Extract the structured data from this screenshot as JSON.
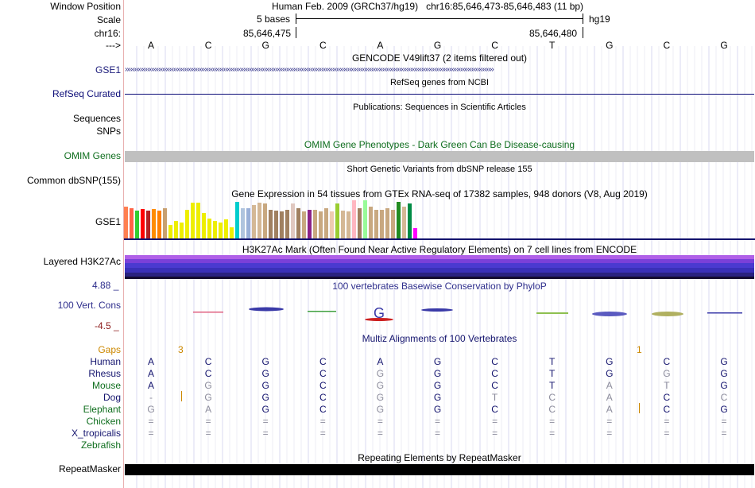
{
  "header": {
    "window_position_label": "Window Position",
    "assembly": "Human Feb. 2009 (GRCh37/hg19)",
    "position": "chr16:85,646,473-85,646,483 (11 bp)",
    "scale_label": "Scale",
    "scale_bases": "5 bases",
    "scale_db": "hg19",
    "chrom_label": "chr16:",
    "coord_left": "85,646,475",
    "coord_right": "85,646,480",
    "strand_label": "--->",
    "sequence": [
      "A",
      "C",
      "G",
      "C",
      "A",
      "G",
      "C",
      "T",
      "G",
      "C",
      "G"
    ]
  },
  "tracks": {
    "gencode": {
      "title": "GENCODE V49lift37 (2 items filtered out)",
      "label": "GSE1",
      "color": "#1a1a7a"
    },
    "refseq": {
      "title": "RefSeq genes from NCBI",
      "label": "RefSeq Curated",
      "color": "#0c0c78"
    },
    "publications": {
      "title": "Publications: Sequences in Scientific Articles",
      "label": "Sequences"
    },
    "snps_label": "SNPs",
    "omim": {
      "title": "OMIM Gene Phenotypes - Dark Green Can Be Disease-causing",
      "label": "OMIM Genes",
      "color": "#0f6e1e"
    },
    "dbsnp": {
      "title": "Short Genetic Variants from dbSNP release 155",
      "label": "Common dbSNP(155)"
    },
    "gtex": {
      "title": "Gene Expression in 54 tissues from GTEx RNA-seq of 17382 samples, 948 donors (V8, Aug 2019)",
      "label": "GSE1"
    },
    "h3k27ac": {
      "title": "H3K27Ac Mark (Often Found Near Active Regulatory Elements) on 7 cell lines from ENCODE",
      "label": "Layered H3K27Ac"
    },
    "phylop": {
      "title": "100 vertebrates Basewise Conservation by PhyloP",
      "label": "100 Vert. Cons",
      "max": "4.88 _",
      "min": "-4.5 _",
      "color": "#2e2e8c"
    },
    "multiz": {
      "title": "Multiz Alignments of 100 Vertebrates",
      "gaps_label": "Gaps",
      "gap_marks": [
        "3",
        "1"
      ],
      "species": [
        {
          "name": "Human",
          "bases": [
            "A",
            "C",
            "G",
            "C",
            "A",
            "G",
            "C",
            "T",
            "G",
            "C",
            "G"
          ]
        },
        {
          "name": "Rhesus",
          "bases": [
            "A",
            "C",
            "G",
            "C",
            "G",
            "G",
            "C",
            "T",
            "G",
            "G",
            "G"
          ]
        },
        {
          "name": "Mouse",
          "bases": [
            "A",
            "G",
            "G",
            "C",
            "G",
            "G",
            "C",
            "T",
            "A",
            "T",
            "G"
          ]
        },
        {
          "name": "Dog",
          "bases": [
            "-",
            "G",
            "G",
            "C",
            "G",
            "G",
            "T",
            "C",
            "A",
            "C",
            "C"
          ]
        },
        {
          "name": "Elephant",
          "bases": [
            "G",
            "A",
            "G",
            "C",
            "G",
            "G",
            "C",
            "C",
            "A",
            "C",
            "G"
          ]
        },
        {
          "name": "Chicken",
          "bases": [
            "=",
            "=",
            "=",
            "=",
            "=",
            "=",
            "=",
            "=",
            "=",
            "=",
            "="
          ]
        },
        {
          "name": "X_tropicalis",
          "bases": [
            "=",
            "=",
            "=",
            "=",
            "=",
            "=",
            "=",
            "=",
            "=",
            "=",
            "="
          ]
        },
        {
          "name": "Zebrafish",
          "bases": []
        }
      ]
    },
    "repeatmasker": {
      "title": "Repeating Elements by RepeatMasker",
      "label": "RepeatMasker"
    }
  },
  "colors": {
    "navy": "#14146e",
    "green": "#0f6e1e",
    "orange": "#cc8800",
    "grey_base": "#8c8c9c"
  }
}
